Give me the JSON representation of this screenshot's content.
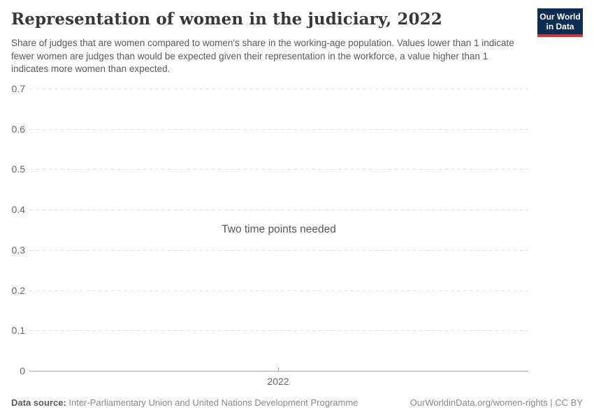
{
  "header": {
    "title": "Representation of women in the judiciary, 2022",
    "subtitle": "Share of judges that are women compared to women's share in the working-age population. Values lower than 1 indicate fewer women are judges than would be expected given their representation in the workforce, a value higher than 1 indicates more women than expected.",
    "logo": {
      "line1": "Our World",
      "line2": "in Data",
      "bg_color": "#0d2e51",
      "stripe_color": "#d0342c"
    }
  },
  "chart_data": {
    "type": "line",
    "title": "Representation of women in the judiciary, 2022",
    "series": [],
    "empty_message": "Two time points needed",
    "x_ticks": [
      "2022"
    ],
    "y_ticks": [
      0,
      0.1,
      0.2,
      0.3,
      0.4,
      0.5,
      0.6,
      0.7
    ],
    "y_tick_labels": [
      "0",
      "0.1",
      "0.2",
      "0.3",
      "0.4",
      "0.5",
      "0.6",
      "0.7"
    ],
    "ylim": [
      0,
      0.7
    ],
    "grid": "horizontal-dashed",
    "legend": "none",
    "colors": {
      "gridline": "#e3e3e3",
      "axis_line": "#a6a6a6",
      "tick_label": "#666666"
    }
  },
  "footer": {
    "source_label": "Data source:",
    "source_value": "Inter-Parliamentary Union and United Nations Development Programme",
    "link": "OurWorldinData.org/women-rights",
    "separator": " | ",
    "license": "CC BY"
  }
}
